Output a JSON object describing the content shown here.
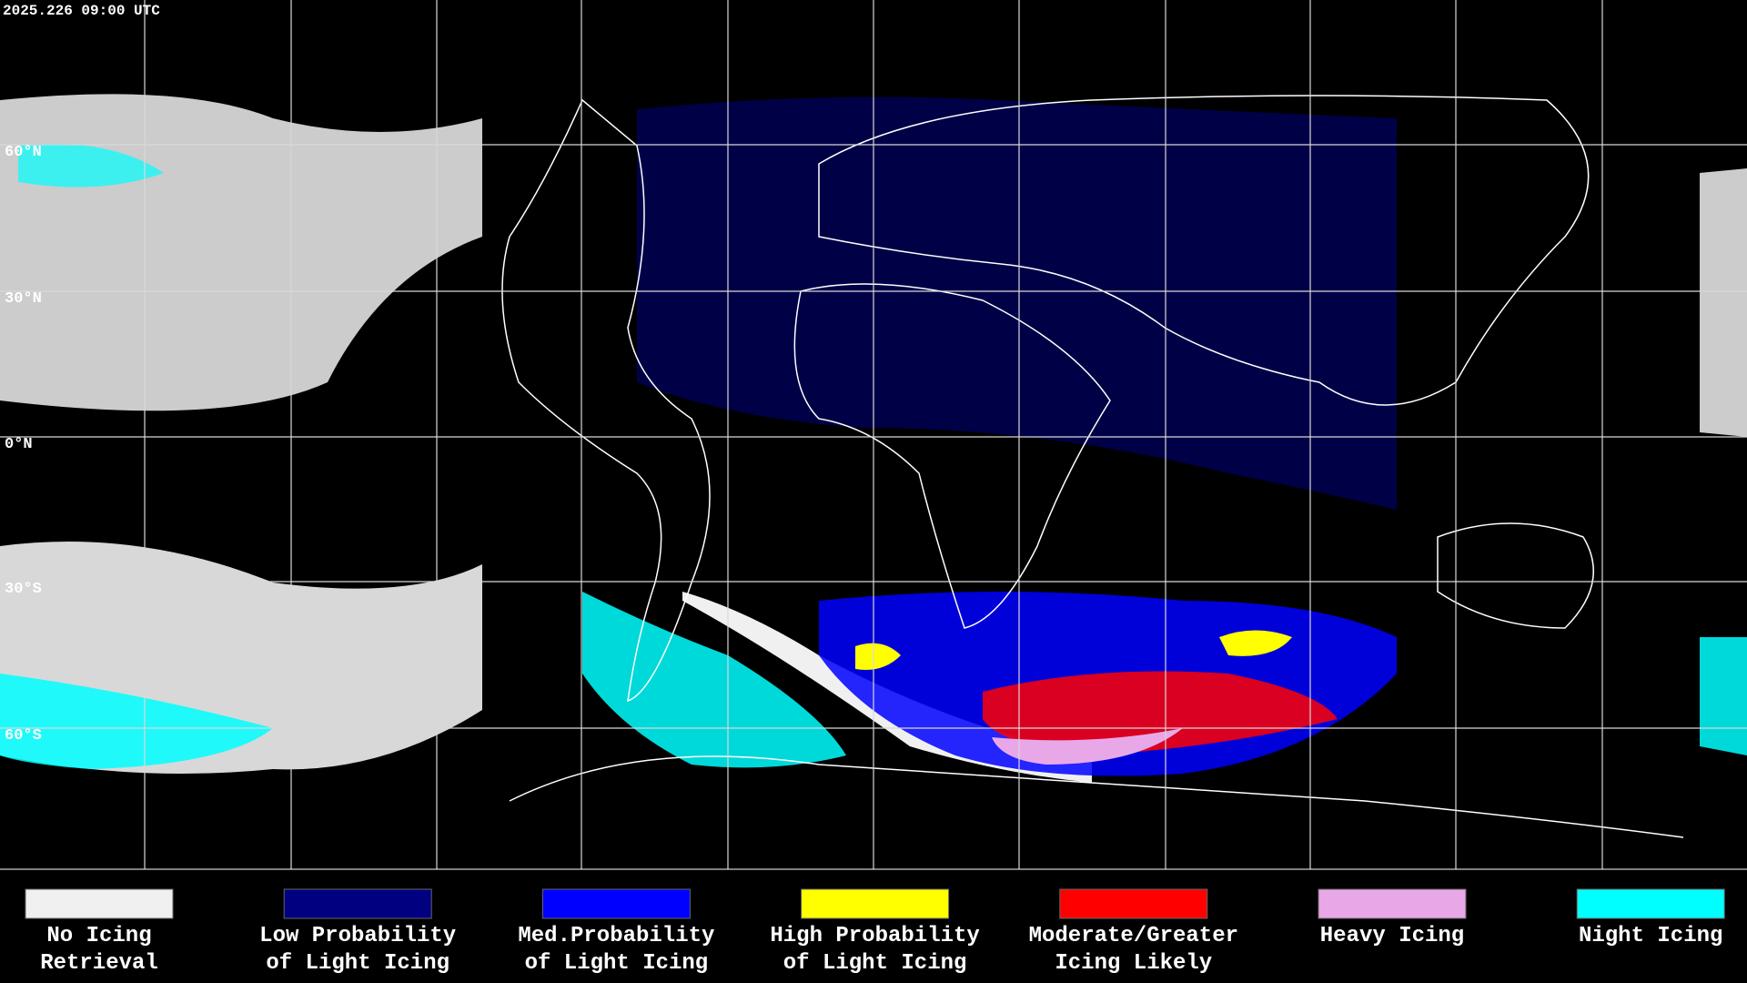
{
  "map": {
    "timestamp": "2025.226 09:00 UTC",
    "latitude_labels": [
      "60°N",
      "30°N",
      "0°N",
      "30°S",
      "60°S"
    ],
    "legend": [
      {
        "lines": [
          "No Icing",
          "Retrieval"
        ],
        "color": "#f0f0f0"
      },
      {
        "lines": [
          "Low Probability",
          "of Light Icing"
        ],
        "color": "#000080"
      },
      {
        "lines": [
          "Med.Probability",
          "of Light Icing"
        ],
        "color": "#0000ff"
      },
      {
        "lines": [
          "High Probability",
          "of Light Icing"
        ],
        "color": "#ffff00"
      },
      {
        "lines": [
          "Moderate/Greater",
          "Icing Likely"
        ],
        "color": "#ff0000"
      },
      {
        "lines": [
          "Heavy Icing"
        ],
        "color": "#e8a8e8"
      },
      {
        "lines": [
          "Night Icing"
        ],
        "color": "#00ffff"
      }
    ]
  }
}
